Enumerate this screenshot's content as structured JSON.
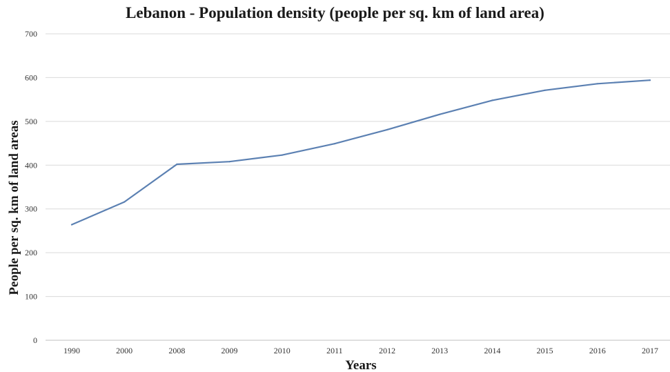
{
  "chart_data": {
    "type": "line",
    "title": "Lebanon - Population density (people per sq. km of land area)",
    "xlabel": "Years",
    "ylabel": "People per sq. km of land areas",
    "categories": [
      "1990",
      "2000",
      "2008",
      "2009",
      "2010",
      "2011",
      "2012",
      "2013",
      "2014",
      "2015",
      "2016",
      "2017"
    ],
    "series": [
      {
        "values": [
          264,
          316,
          402,
          408,
          423,
          449,
          481,
          516,
          548,
          571,
          586,
          594
        ]
      }
    ],
    "ylim": [
      0,
      700
    ],
    "yticks": [
      0,
      100,
      200,
      300,
      400,
      500,
      600,
      700
    ],
    "grid": true,
    "legend": "none",
    "colors": {
      "series": "#5b80b2",
      "grid": "#d9d9d9"
    }
  }
}
